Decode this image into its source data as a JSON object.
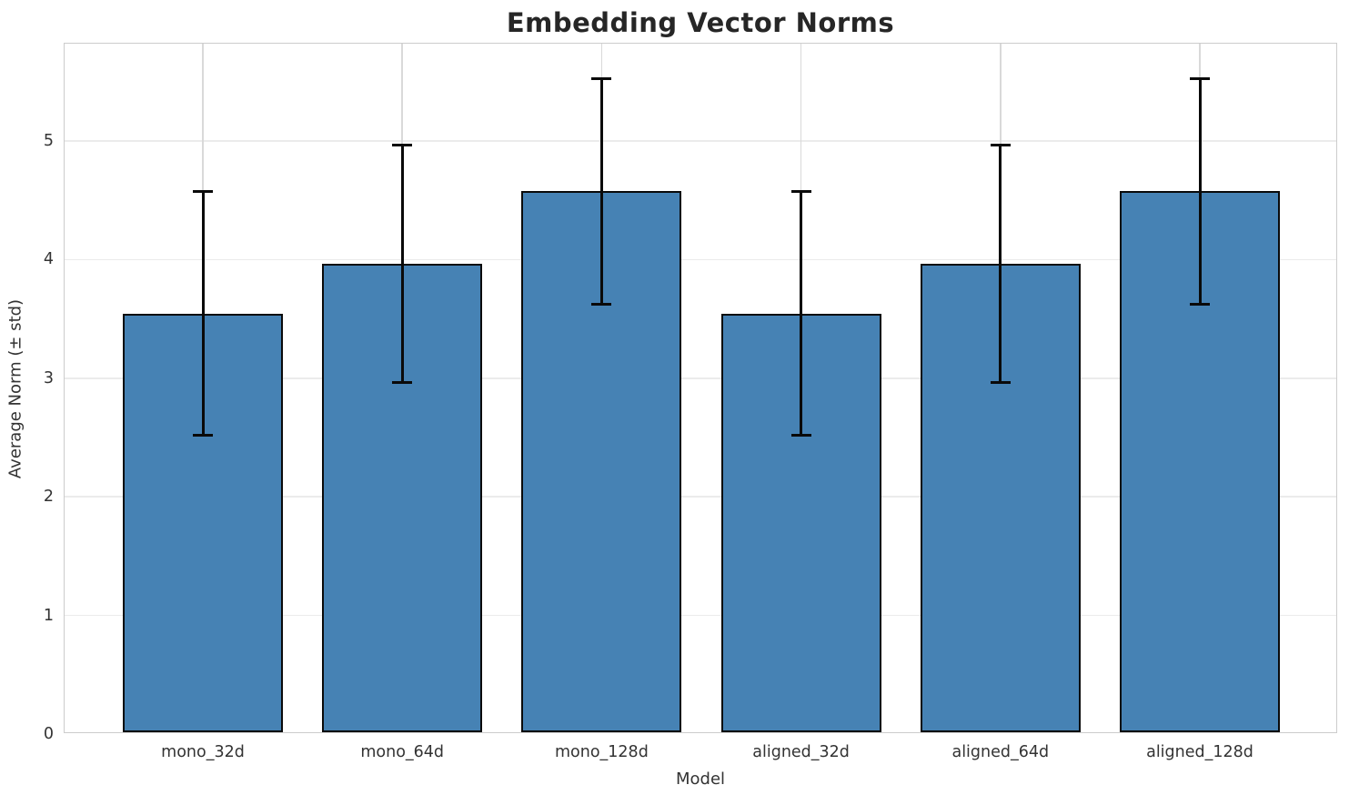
{
  "chart_data": {
    "type": "bar",
    "title": "Embedding Vector Norms",
    "xlabel": "Model",
    "ylabel": "Average Norm (± std)",
    "categories": [
      "mono_32d",
      "mono_64d",
      "mono_128d",
      "aligned_32d",
      "aligned_64d",
      "aligned_128d"
    ],
    "values": [
      3.53,
      3.95,
      4.56,
      3.53,
      3.95,
      4.56
    ],
    "errors": [
      1.03,
      1.0,
      0.95,
      1.03,
      1.0,
      0.95
    ],
    "yticks": [
      0,
      1,
      2,
      3,
      4,
      5
    ],
    "ylim": [
      0,
      5.82
    ],
    "grid": true,
    "legend_position": "none",
    "bar_color": "#4682b4",
    "bar_edge_color": "#0a0a0a",
    "error_color": "#0a0a0a",
    "grid_color_h": "#ebebeb",
    "grid_color_v": "#d9d9d9",
    "spine_color": "#cccccc",
    "text_color": "#333333",
    "title_color": "#262626",
    "background_color": "#ffffff"
  }
}
